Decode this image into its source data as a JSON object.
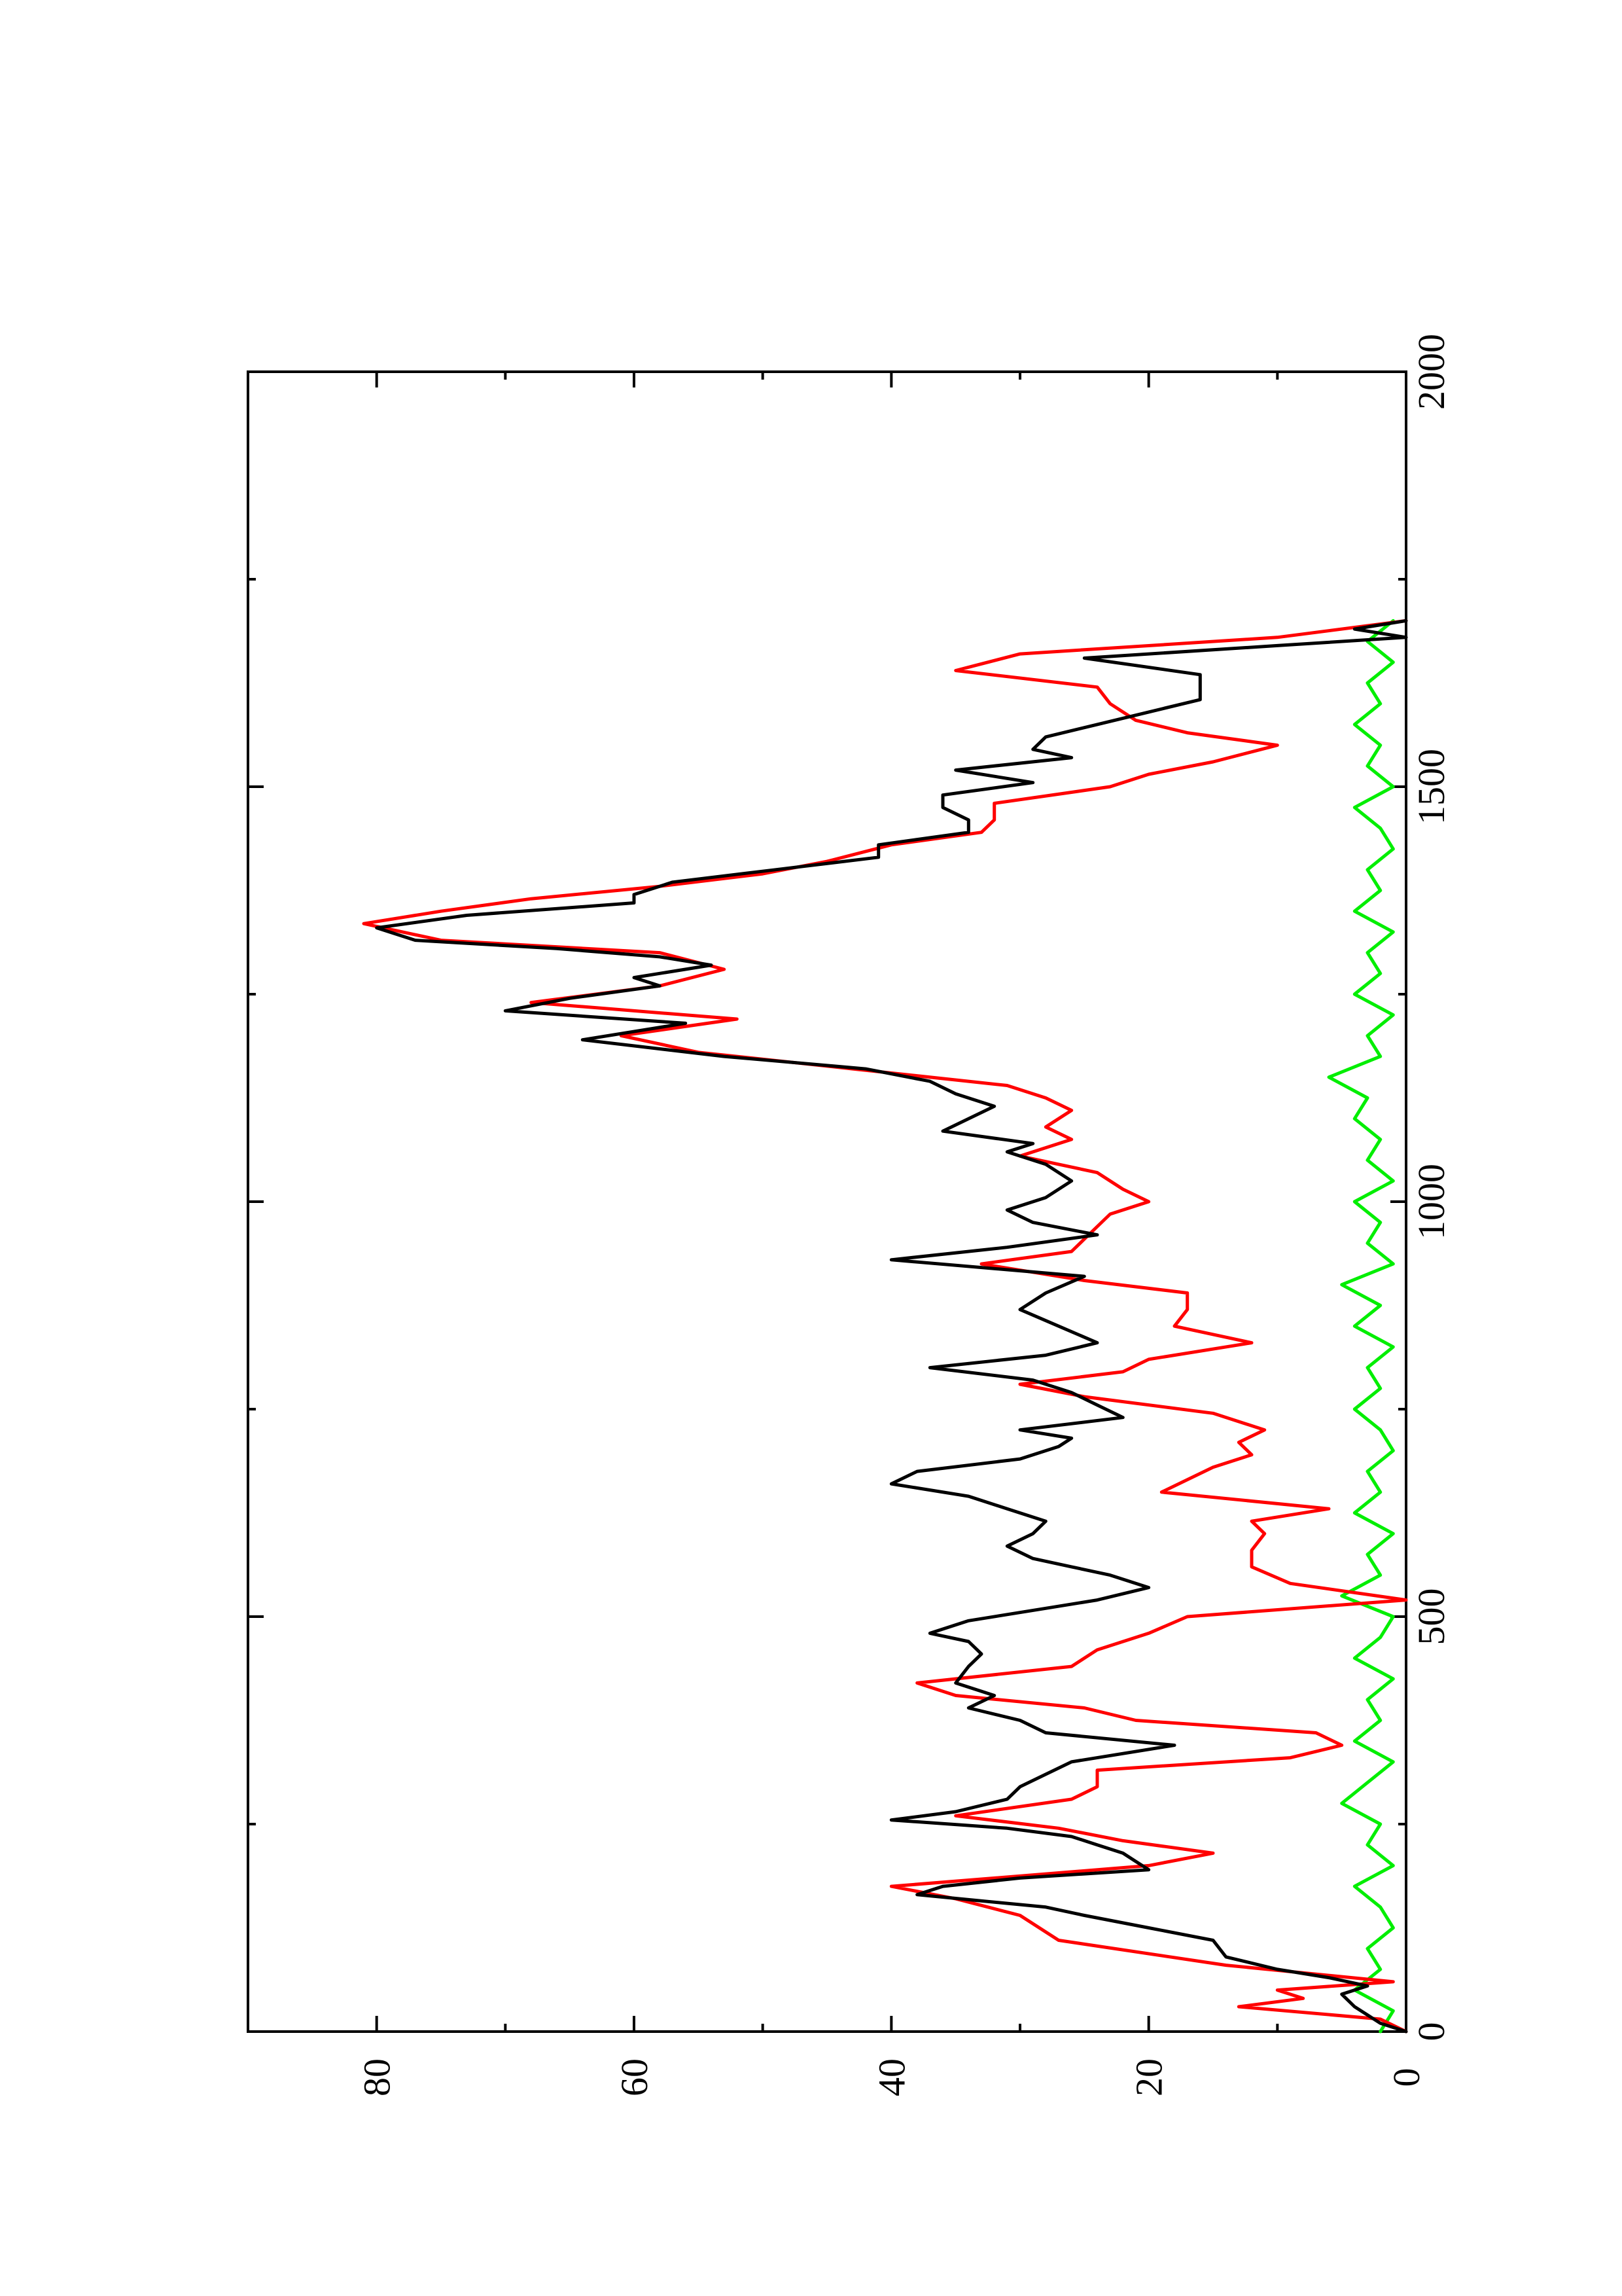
{
  "chart_data": {
    "type": "line",
    "title": "",
    "xlabel": "",
    "ylabel": "",
    "orientation": "rotated-90-ccw",
    "xlim": [
      0,
      2000
    ],
    "ylim": [
      0,
      90
    ],
    "x_ticks": [
      "0",
      "500",
      "1000",
      "1500",
      "2000"
    ],
    "x_tick_values": [
      0,
      500,
      1000,
      1500,
      2000
    ],
    "x_minor_tick_values": [
      250,
      750,
      1250,
      1750
    ],
    "y_ticks": [
      "0",
      "20",
      "40",
      "60",
      "80"
    ],
    "y_tick_values": [
      0,
      20,
      40,
      60,
      80
    ],
    "y_minor_tick_values": [
      10,
      30,
      50,
      70
    ],
    "grid": false,
    "legend": "none",
    "series": [
      {
        "color": "#000000",
        "points": [
          [
            0,
            0
          ],
          [
            10,
            2
          ],
          [
            20,
            3
          ],
          [
            30,
            4
          ],
          [
            45,
            5
          ],
          [
            55,
            3
          ],
          [
            65,
            6
          ],
          [
            75,
            10
          ],
          [
            90,
            14
          ],
          [
            110,
            15
          ],
          [
            125,
            20
          ],
          [
            140,
            25
          ],
          [
            150,
            28
          ],
          [
            165,
            38
          ],
          [
            175,
            36
          ],
          [
            185,
            30
          ],
          [
            195,
            20
          ],
          [
            205,
            21
          ],
          [
            215,
            22
          ],
          [
            225,
            24
          ],
          [
            235,
            26
          ],
          [
            245,
            31
          ],
          [
            255,
            40
          ],
          [
            265,
            35
          ],
          [
            280,
            31
          ],
          [
            295,
            30
          ],
          [
            310,
            28
          ],
          [
            325,
            26
          ],
          [
            345,
            18
          ],
          [
            360,
            28
          ],
          [
            375,
            30
          ],
          [
            390,
            34
          ],
          [
            405,
            32
          ],
          [
            420,
            35
          ],
          [
            440,
            34
          ],
          [
            455,
            33
          ],
          [
            470,
            34
          ],
          [
            480,
            37
          ],
          [
            495,
            34
          ],
          [
            510,
            28
          ],
          [
            520,
            24
          ],
          [
            535,
            20
          ],
          [
            550,
            23
          ],
          [
            560,
            26
          ],
          [
            570,
            29
          ],
          [
            585,
            31
          ],
          [
            600,
            29
          ],
          [
            615,
            28
          ],
          [
            630,
            31
          ],
          [
            645,
            34
          ],
          [
            660,
            40
          ],
          [
            675,
            38
          ],
          [
            690,
            30
          ],
          [
            705,
            27
          ],
          [
            715,
            26
          ],
          [
            725,
            30
          ],
          [
            740,
            22
          ],
          [
            755,
            24
          ],
          [
            770,
            26
          ],
          [
            785,
            29
          ],
          [
            800,
            37
          ],
          [
            815,
            28
          ],
          [
            830,
            24
          ],
          [
            850,
            27
          ],
          [
            870,
            30
          ],
          [
            890,
            28
          ],
          [
            910,
            25
          ],
          [
            930,
            40
          ],
          [
            945,
            31
          ],
          [
            960,
            24
          ],
          [
            975,
            29
          ],
          [
            990,
            31
          ],
          [
            1005,
            28
          ],
          [
            1025,
            26
          ],
          [
            1045,
            28
          ],
          [
            1060,
            31
          ],
          [
            1070,
            29
          ],
          [
            1085,
            36
          ],
          [
            1100,
            34
          ],
          [
            1115,
            32
          ],
          [
            1130,
            35
          ],
          [
            1145,
            37
          ],
          [
            1160,
            42
          ],
          [
            1175,
            53
          ],
          [
            1195,
            64
          ],
          [
            1215,
            56
          ],
          [
            1230,
            70
          ],
          [
            1245,
            65
          ],
          [
            1260,
            58
          ],
          [
            1270,
            60
          ],
          [
            1285,
            54
          ],
          [
            1295,
            58
          ],
          [
            1305,
            66
          ],
          [
            1315,
            77
          ],
          [
            1330,
            80
          ],
          [
            1345,
            73
          ],
          [
            1360,
            60
          ],
          [
            1370,
            60
          ],
          [
            1385,
            57
          ],
          [
            1400,
            49
          ],
          [
            1415,
            41
          ],
          [
            1430,
            41
          ],
          [
            1445,
            34
          ],
          [
            1460,
            34
          ],
          [
            1475,
            36
          ],
          [
            1490,
            36
          ],
          [
            1505,
            29
          ],
          [
            1520,
            35
          ],
          [
            1535,
            26
          ],
          [
            1545,
            29
          ],
          [
            1560,
            28
          ],
          [
            1575,
            24
          ],
          [
            1590,
            20
          ],
          [
            1605,
            16
          ],
          [
            1620,
            16
          ],
          [
            1635,
            16
          ],
          [
            1655,
            25
          ],
          [
            1670,
            10
          ],
          [
            1680,
            0
          ],
          [
            1690,
            4
          ],
          [
            1700,
            0
          ]
        ]
      },
      {
        "color": "#ff0000",
        "points": [
          [
            0,
            0
          ],
          [
            15,
            2
          ],
          [
            30,
            13
          ],
          [
            40,
            8
          ],
          [
            50,
            10
          ],
          [
            60,
            1
          ],
          [
            80,
            14
          ],
          [
            110,
            27
          ],
          [
            140,
            30
          ],
          [
            160,
            35
          ],
          [
            175,
            40
          ],
          [
            190,
            28
          ],
          [
            200,
            20
          ],
          [
            215,
            15
          ],
          [
            230,
            22
          ],
          [
            245,
            27
          ],
          [
            260,
            35
          ],
          [
            280,
            26
          ],
          [
            295,
            24
          ],
          [
            315,
            24
          ],
          [
            330,
            9
          ],
          [
            345,
            5
          ],
          [
            360,
            7
          ],
          [
            375,
            21
          ],
          [
            390,
            25
          ],
          [
            405,
            35
          ],
          [
            420,
            38
          ],
          [
            440,
            26
          ],
          [
            460,
            24
          ],
          [
            480,
            20
          ],
          [
            500,
            17
          ],
          [
            520,
            0
          ],
          [
            540,
            9
          ],
          [
            560,
            12
          ],
          [
            580,
            12
          ],
          [
            600,
            11
          ],
          [
            615,
            12
          ],
          [
            630,
            6
          ],
          [
            650,
            19
          ],
          [
            665,
            17
          ],
          [
            680,
            15
          ],
          [
            695,
            12
          ],
          [
            710,
            13
          ],
          [
            725,
            11
          ],
          [
            745,
            15
          ],
          [
            765,
            25
          ],
          [
            780,
            30
          ],
          [
            795,
            22
          ],
          [
            810,
            20
          ],
          [
            830,
            12
          ],
          [
            850,
            18
          ],
          [
            870,
            17
          ],
          [
            890,
            17
          ],
          [
            905,
            25
          ],
          [
            925,
            33
          ],
          [
            940,
            26
          ],
          [
            955,
            25
          ],
          [
            970,
            24
          ],
          [
            985,
            23
          ],
          [
            1000,
            20
          ],
          [
            1015,
            22
          ],
          [
            1035,
            24
          ],
          [
            1055,
            30
          ],
          [
            1075,
            26
          ],
          [
            1090,
            28
          ],
          [
            1110,
            26
          ],
          [
            1125,
            28
          ],
          [
            1140,
            31
          ],
          [
            1160,
            43
          ],
          [
            1180,
            55
          ],
          [
            1200,
            61
          ],
          [
            1220,
            52
          ],
          [
            1240,
            68
          ],
          [
            1260,
            58
          ],
          [
            1280,
            53
          ],
          [
            1300,
            58
          ],
          [
            1315,
            75
          ],
          [
            1335,
            81
          ],
          [
            1350,
            75
          ],
          [
            1365,
            68
          ],
          [
            1380,
            58
          ],
          [
            1395,
            50
          ],
          [
            1410,
            45
          ],
          [
            1430,
            40
          ],
          [
            1445,
            33
          ],
          [
            1460,
            32
          ],
          [
            1480,
            32
          ],
          [
            1500,
            23
          ],
          [
            1515,
            20
          ],
          [
            1530,
            15
          ],
          [
            1550,
            10
          ],
          [
            1565,
            17
          ],
          [
            1580,
            21
          ],
          [
            1600,
            23
          ],
          [
            1620,
            24
          ],
          [
            1640,
            35
          ],
          [
            1660,
            30
          ],
          [
            1680,
            10
          ],
          [
            1700,
            0
          ]
        ]
      },
      {
        "color": "#00ee00",
        "points": [
          [
            0,
            2
          ],
          [
            25,
            1
          ],
          [
            50,
            4
          ],
          [
            75,
            2
          ],
          [
            100,
            3
          ],
          [
            125,
            1
          ],
          [
            150,
            2
          ],
          [
            175,
            4
          ],
          [
            200,
            1
          ],
          [
            225,
            3
          ],
          [
            250,
            2
          ],
          [
            275,
            5
          ],
          [
            300,
            3
          ],
          [
            325,
            1
          ],
          [
            350,
            4
          ],
          [
            375,
            2
          ],
          [
            400,
            3
          ],
          [
            425,
            1
          ],
          [
            450,
            4
          ],
          [
            475,
            2
          ],
          [
            500,
            1
          ],
          [
            525,
            5
          ],
          [
            550,
            2
          ],
          [
            575,
            3
          ],
          [
            600,
            1
          ],
          [
            625,
            4
          ],
          [
            650,
            2
          ],
          [
            675,
            3
          ],
          [
            700,
            1
          ],
          [
            725,
            2
          ],
          [
            750,
            4
          ],
          [
            775,
            2
          ],
          [
            800,
            3
          ],
          [
            825,
            1
          ],
          [
            850,
            4
          ],
          [
            875,
            2
          ],
          [
            900,
            5
          ],
          [
            925,
            1
          ],
          [
            950,
            3
          ],
          [
            975,
            2
          ],
          [
            1000,
            4
          ],
          [
            1025,
            1
          ],
          [
            1050,
            3
          ],
          [
            1075,
            2
          ],
          [
            1100,
            4
          ],
          [
            1125,
            3
          ],
          [
            1150,
            6
          ],
          [
            1175,
            2
          ],
          [
            1200,
            3
          ],
          [
            1225,
            1
          ],
          [
            1250,
            4
          ],
          [
            1275,
            2
          ],
          [
            1300,
            3
          ],
          [
            1325,
            1
          ],
          [
            1350,
            4
          ],
          [
            1375,
            2
          ],
          [
            1400,
            3
          ],
          [
            1425,
            1
          ],
          [
            1450,
            2
          ],
          [
            1475,
            4
          ],
          [
            1500,
            1
          ],
          [
            1525,
            3
          ],
          [
            1550,
            2
          ],
          [
            1575,
            4
          ],
          [
            1600,
            2
          ],
          [
            1625,
            3
          ],
          [
            1650,
            1
          ],
          [
            1675,
            3
          ],
          [
            1700,
            1
          ]
        ]
      }
    ]
  }
}
